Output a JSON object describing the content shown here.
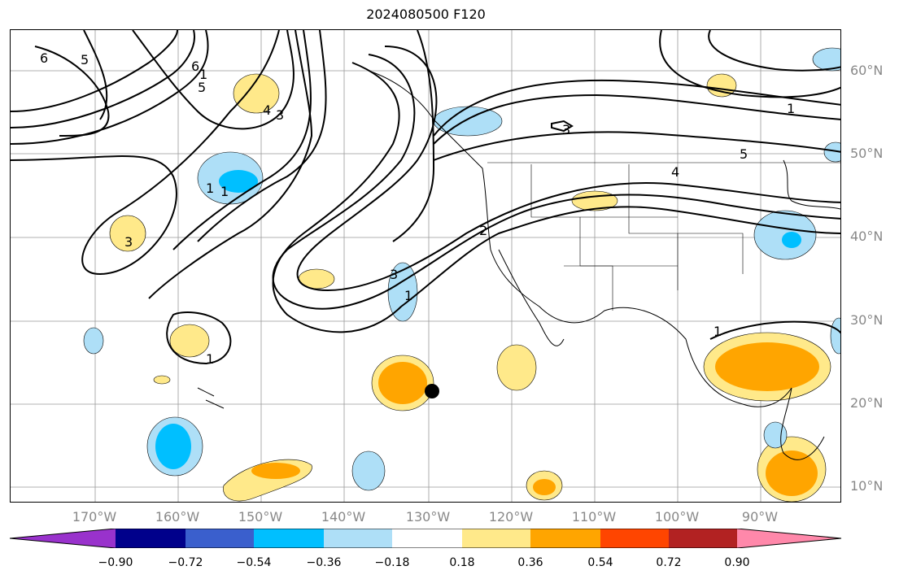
{
  "title": "2024080500 F120",
  "lat_labels": [
    "60°N",
    "50°N",
    "40°N",
    "30°N",
    "20°N",
    "10°N"
  ],
  "lon_labels": [
    "170°W",
    "160°W",
    "150°W",
    "140°W",
    "130°W",
    "120°W",
    "110°W",
    "100°W",
    "90°W"
  ],
  "contour_labels": [
    "6",
    "5",
    "6",
    "5",
    "4",
    "3",
    "1",
    "1",
    "3",
    "3",
    "1",
    "1",
    "2",
    "4",
    "5",
    "1",
    "3",
    "1",
    "1"
  ],
  "colorbar": {
    "ticks": [
      "−0.90",
      "−0.72",
      "−0.54",
      "−0.36",
      "−0.18",
      "0.18",
      "0.36",
      "0.54",
      "0.72",
      "0.90"
    ],
    "colors": [
      "#9932cc",
      "#00008b",
      "#3a5fcd",
      "#00bfff",
      "#aedff7",
      "#ffffff",
      "#ffe98a",
      "#ffa500",
      "#ff4500",
      "#b22222",
      "#ff88aa"
    ]
  },
  "marker": "storm-center-dot"
}
